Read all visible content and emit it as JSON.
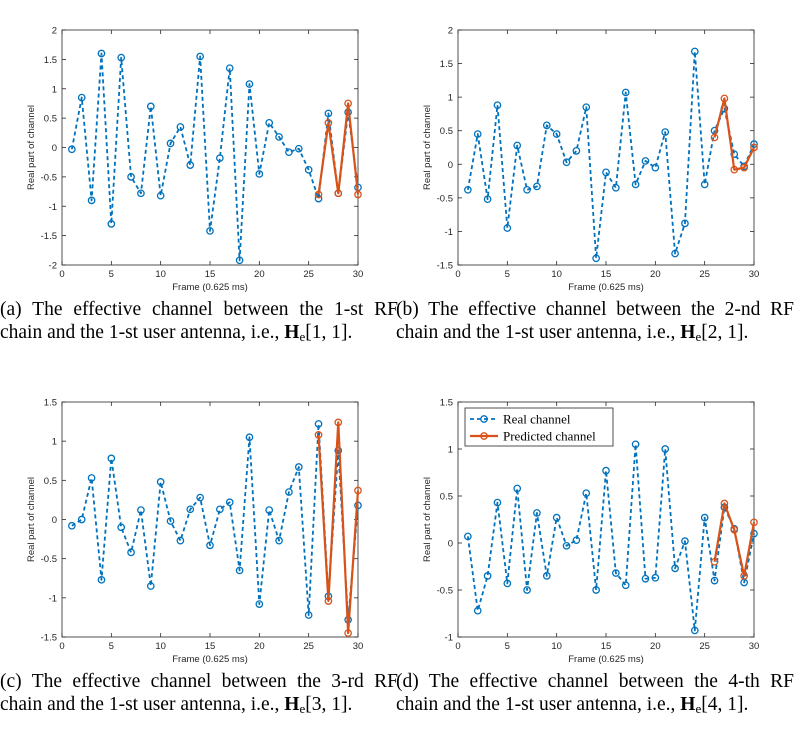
{
  "colors": {
    "real": "#0072BD",
    "predicted": "#D95319",
    "axis": "#262626"
  },
  "shared": {
    "xlabel": "Frame (0.625 ms)",
    "ylabel": "Real part of channel",
    "legend": [
      "Real channel",
      "Predicted channel"
    ]
  },
  "chart_data": [
    {
      "type": "line",
      "xlim": [
        0,
        30
      ],
      "ylim": [
        -2,
        2
      ],
      "xticks": [
        0,
        5,
        10,
        15,
        20,
        25,
        30
      ],
      "yticks": [
        -2,
        -1.5,
        -1,
        -0.5,
        0,
        0.5,
        1,
        1.5,
        2
      ],
      "xlabel": "Frame (0.625 ms)",
      "ylabel": "Real part of channel",
      "legend": false,
      "series": [
        {
          "name": "Real channel",
          "x": [
            1,
            2,
            3,
            4,
            5,
            6,
            7,
            8,
            9,
            10,
            11,
            12,
            13,
            14,
            15,
            16,
            17,
            18,
            19,
            20,
            21,
            22,
            23,
            24,
            25,
            26,
            27,
            28,
            29,
            30
          ],
          "values": [
            -0.03,
            0.85,
            -0.9,
            1.6,
            -1.3,
            1.53,
            -0.5,
            -0.78,
            0.7,
            -0.82,
            0.07,
            0.35,
            -0.3,
            1.55,
            -1.42,
            -0.18,
            1.35,
            -1.92,
            1.08,
            -0.45,
            0.42,
            0.18,
            -0.08,
            -0.02,
            -0.38,
            -0.87,
            0.58,
            -0.78,
            0.6,
            -0.68
          ]
        },
        {
          "name": "Predicted channel",
          "x": [
            26,
            27,
            28,
            29,
            30
          ],
          "values": [
            -0.8,
            0.42,
            -0.78,
            0.75,
            -0.8
          ]
        }
      ],
      "caption": {
        "label": "(a)",
        "text": "The effective channel between the 1-st RF chain and the 1-st user antenna, i.e.,",
        "math_symbol": "H",
        "math_sub": "e",
        "math_index": "[1, 1]."
      }
    },
    {
      "type": "line",
      "xlim": [
        0,
        30
      ],
      "ylim": [
        -1.5,
        2
      ],
      "xticks": [
        0,
        5,
        10,
        15,
        20,
        25,
        30
      ],
      "yticks": [
        -1.5,
        -1,
        -0.5,
        0,
        0.5,
        1,
        1.5,
        2
      ],
      "xlabel": "Frame (0.625 ms)",
      "ylabel": "Real part of channel",
      "legend": false,
      "series": [
        {
          "name": "Real channel",
          "x": [
            1,
            2,
            3,
            4,
            5,
            6,
            7,
            8,
            9,
            10,
            11,
            12,
            13,
            14,
            15,
            16,
            17,
            18,
            19,
            20,
            21,
            22,
            23,
            24,
            25,
            26,
            27,
            28,
            29,
            30
          ],
          "values": [
            -0.38,
            0.45,
            -0.52,
            0.88,
            -0.95,
            0.28,
            -0.38,
            -0.33,
            0.58,
            0.45,
            0.03,
            0.2,
            0.85,
            -1.4,
            -0.12,
            -0.35,
            1.07,
            -0.3,
            0.05,
            -0.05,
            0.48,
            -1.33,
            -0.88,
            1.68,
            -0.3,
            0.5,
            0.83,
            0.15,
            -0.03,
            0.3
          ]
        },
        {
          "name": "Predicted channel",
          "x": [
            26,
            27,
            28,
            29,
            30
          ],
          "values": [
            0.4,
            0.98,
            -0.08,
            -0.05,
            0.25
          ]
        }
      ],
      "caption": {
        "label": "(b)",
        "text": "The effective channel between the 2-nd RF chain and the 1-st user antenna, i.e.,",
        "math_symbol": "H",
        "math_sub": "e",
        "math_index": "[2, 1]."
      }
    },
    {
      "type": "line",
      "xlim": [
        0,
        30
      ],
      "ylim": [
        -1.5,
        1.5
      ],
      "xticks": [
        0,
        5,
        10,
        15,
        20,
        25,
        30
      ],
      "yticks": [
        -1.5,
        -1,
        -0.5,
        0,
        0.5,
        1,
        1.5
      ],
      "xlabel": "Frame (0.625 ms)",
      "ylabel": "Real part of channel",
      "legend": false,
      "series": [
        {
          "name": "Real channel",
          "x": [
            1,
            2,
            3,
            4,
            5,
            6,
            7,
            8,
            9,
            10,
            11,
            12,
            13,
            14,
            15,
            16,
            17,
            18,
            19,
            20,
            21,
            22,
            23,
            24,
            25,
            26,
            27,
            28,
            29,
            30
          ],
          "values": [
            -0.08,
            0.0,
            0.53,
            -0.77,
            0.78,
            -0.1,
            -0.42,
            0.12,
            -0.85,
            0.48,
            -0.02,
            -0.27,
            0.13,
            0.28,
            -0.33,
            0.13,
            0.22,
            -0.65,
            1.05,
            -1.08,
            0.12,
            -0.27,
            0.35,
            0.67,
            -1.22,
            1.22,
            -0.98,
            0.88,
            -1.28,
            0.18
          ]
        },
        {
          "name": "Predicted channel",
          "x": [
            26,
            27,
            28,
            29,
            30
          ],
          "values": [
            1.08,
            -1.04,
            1.24,
            -1.45,
            0.37
          ]
        }
      ],
      "caption": {
        "label": "(c)",
        "text": "The effective channel between the 3-rd RF chain and the 1-st user antenna, i.e.,",
        "math_symbol": "H",
        "math_sub": "e",
        "math_index": "[3, 1]."
      }
    },
    {
      "type": "line",
      "xlim": [
        0,
        30
      ],
      "ylim": [
        -1,
        1.5
      ],
      "xticks": [
        0,
        5,
        10,
        15,
        20,
        25,
        30
      ],
      "yticks": [
        -1,
        -0.5,
        0,
        0.5,
        1,
        1.5
      ],
      "xlabel": "Frame (0.625 ms)",
      "ylabel": "Real part of channel",
      "legend": true,
      "legend_position": "top-left",
      "series": [
        {
          "name": "Real channel",
          "x": [
            1,
            2,
            3,
            4,
            5,
            6,
            7,
            8,
            9,
            10,
            11,
            12,
            13,
            14,
            15,
            16,
            17,
            18,
            19,
            20,
            21,
            22,
            23,
            24,
            25,
            26,
            27,
            28,
            29,
            30
          ],
          "values": [
            0.07,
            -0.72,
            -0.35,
            0.43,
            -0.43,
            0.58,
            -0.5,
            0.32,
            -0.35,
            0.27,
            -0.03,
            0.03,
            0.53,
            -0.5,
            0.77,
            -0.32,
            -0.45,
            1.05,
            -0.38,
            -0.37,
            1.0,
            -0.27,
            0.02,
            -0.93,
            0.27,
            -0.4,
            0.38,
            0.15,
            -0.42,
            0.1
          ]
        },
        {
          "name": "Predicted channel",
          "x": [
            26,
            27,
            28,
            29,
            30
          ],
          "values": [
            -0.2,
            0.42,
            0.14,
            -0.35,
            0.22
          ]
        }
      ],
      "caption": {
        "label": "(d)",
        "text": "The effective channel between the 4-th RF chain and the 1-st user antenna, i.e.,",
        "math_symbol": "H",
        "math_sub": "e",
        "math_index": "[4, 1]."
      }
    }
  ]
}
